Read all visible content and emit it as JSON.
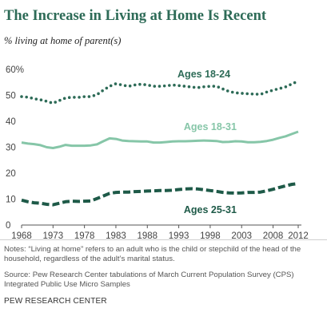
{
  "header": {
    "title": "The Increase in Living at Home Is Recent",
    "subtitle": "% living at home of parent(s)"
  },
  "chart_data": {
    "type": "line",
    "x": [
      1968,
      1969,
      1970,
      1971,
      1972,
      1973,
      1974,
      1975,
      1976,
      1977,
      1978,
      1979,
      1980,
      1981,
      1982,
      1983,
      1984,
      1985,
      1986,
      1987,
      1988,
      1989,
      1990,
      1991,
      1992,
      1993,
      1994,
      1995,
      1996,
      1997,
      1998,
      1999,
      2000,
      2001,
      2002,
      2003,
      2004,
      2005,
      2006,
      2007,
      2008,
      2009,
      2010,
      2011,
      2012
    ],
    "x_ticks": [
      "1968",
      "1973",
      "1978",
      "1983",
      "1988",
      "1993",
      "1998",
      "2003",
      "2008",
      "2012"
    ],
    "x_tick_values": [
      1968,
      1973,
      1978,
      1983,
      1988,
      1993,
      1998,
      2003,
      2008,
      2012
    ],
    "y_ticks": [
      "0",
      "10",
      "20",
      "30",
      "40",
      "50",
      "60%"
    ],
    "y_tick_values": [
      0,
      10,
      20,
      30,
      40,
      50,
      60
    ],
    "ylim": [
      0,
      60
    ],
    "xlim": [
      1968,
      2012
    ],
    "grid": false,
    "series": [
      {
        "name": "Ages 18-24",
        "color": "#2d6b57",
        "style": "dotted",
        "values": [
          49.5,
          49.3,
          48.7,
          48.3,
          47.7,
          47.0,
          48.0,
          49.0,
          49.3,
          49.2,
          49.5,
          49.5,
          50.3,
          52.0,
          53.5,
          54.5,
          54.0,
          53.5,
          54.0,
          54.3,
          54.0,
          53.5,
          53.5,
          53.7,
          54.0,
          53.8,
          53.5,
          53.2,
          53.0,
          53.3,
          53.5,
          53.5,
          52.5,
          51.5,
          51.0,
          50.8,
          50.6,
          50.5,
          50.4,
          51.3,
          52.0,
          52.6,
          53.3,
          54.4,
          55.5
        ]
      },
      {
        "name": "Ages 18-31",
        "color": "#86c6a8",
        "style": "solid",
        "values": [
          31.8,
          31.4,
          31.2,
          30.8,
          30.0,
          29.7,
          30.2,
          30.9,
          30.6,
          30.6,
          30.6,
          30.7,
          31.1,
          32.3,
          33.4,
          33.2,
          32.6,
          32.4,
          32.3,
          32.2,
          32.2,
          31.8,
          31.8,
          32.0,
          32.2,
          32.3,
          32.3,
          32.4,
          32.5,
          32.6,
          32.5,
          32.4,
          32.0,
          32.1,
          32.3,
          32.2,
          31.9,
          31.9,
          32.1,
          32.4,
          32.9,
          33.6,
          34.2,
          35.1,
          36.0
        ]
      },
      {
        "name": "Ages 25-31",
        "color": "#1e5a48",
        "style": "dashed",
        "values": [
          9.6,
          9.0,
          8.6,
          8.4,
          8.0,
          7.8,
          8.4,
          9.0,
          9.2,
          9.1,
          9.2,
          9.3,
          10.2,
          11.2,
          12.2,
          12.6,
          12.7,
          12.7,
          12.9,
          13.0,
          13.1,
          13.2,
          13.3,
          13.3,
          13.4,
          13.7,
          13.9,
          14.0,
          13.9,
          13.6,
          13.3,
          13.0,
          12.6,
          12.4,
          12.3,
          12.4,
          12.6,
          12.6,
          12.7,
          13.2,
          13.8,
          14.5,
          15.1,
          15.7,
          16.0
        ]
      }
    ],
    "annotations": [
      {
        "text": "Ages 18-24",
        "series": "Ages 18-24",
        "x": 1997,
        "y": 58.2
      },
      {
        "text": "Ages 18-31",
        "series": "Ages 18-31",
        "x": 1998,
        "y": 37.8
      },
      {
        "text": "Ages 25-31",
        "series": "Ages 25-31",
        "x": 1998,
        "y": 5.8
      }
    ]
  },
  "notes": {
    "note": "Notes: “Living at home” refers to an adult who is the child or stepchild of the head of the household, regardless of the adult’s marital status.",
    "source": "Source: Pew Research Center tabulations of March Current Population Survey (CPS) Integrated Public Use Micro Samples"
  },
  "footer": {
    "org": "PEW RESEARCH CENTER"
  }
}
